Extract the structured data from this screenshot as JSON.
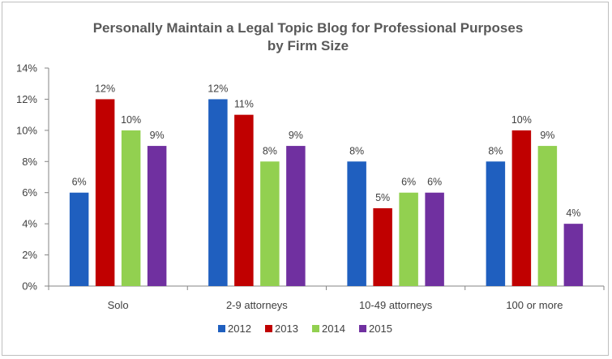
{
  "chart_data": {
    "type": "bar",
    "title": "Personally Maintain a Legal Topic Blog for Professional Purposes",
    "subtitle": "by Firm Size",
    "xlabel": "",
    "ylabel": "",
    "ylim": [
      0,
      14
    ],
    "yticks": [
      "0%",
      "2%",
      "4%",
      "6%",
      "8%",
      "10%",
      "12%",
      "14%"
    ],
    "grid": false,
    "legend_position": "bottom",
    "categories": [
      "Solo",
      "2-9 attorneys",
      "10-49 attorneys",
      "100 or more"
    ],
    "series": [
      {
        "name": "2012",
        "color": "#1f5fbf",
        "values": [
          6,
          12,
          8,
          8
        ],
        "labels": [
          "6%",
          "12%",
          "8%",
          "8%"
        ]
      },
      {
        "name": "2013",
        "color": "#c00000",
        "values": [
          12,
          11,
          5,
          10
        ],
        "labels": [
          "12%",
          "11%",
          "5%",
          "10%"
        ]
      },
      {
        "name": "2014",
        "color": "#92d050",
        "values": [
          10,
          8,
          6,
          9
        ],
        "labels": [
          "10%",
          "8%",
          "6%",
          "9%"
        ]
      },
      {
        "name": "2015",
        "color": "#7030a0",
        "values": [
          9,
          9,
          6,
          4
        ],
        "labels": [
          "9%",
          "9%",
          "6%",
          "4%"
        ]
      }
    ]
  }
}
